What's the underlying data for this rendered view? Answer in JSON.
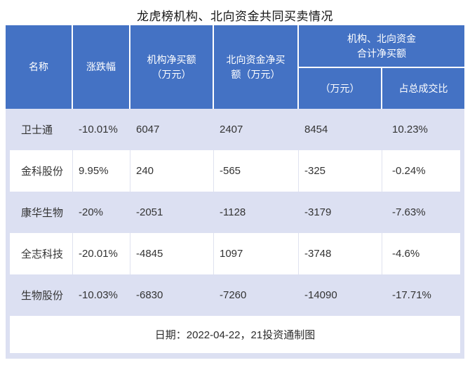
{
  "title": "龙虎榜机构、北向资金共同买卖情况",
  "colors": {
    "header_bg": "#4472C4",
    "header_text": "#FFFFFF",
    "row_alt_bg": "#DCE0F2",
    "row_bg": "#FFFFFF",
    "body_text": "#333333",
    "divider": "#DFE2EF"
  },
  "table": {
    "headers": {
      "name": "名称",
      "change": "涨跌幅",
      "inst_net": "机构净买额\n（万元）",
      "north_net": "北向资金净买\n额（万元）",
      "combined_group": "机构、北向资金\n合计净买额",
      "combined_amount": "（万元）",
      "combined_pct": "占总成交比"
    },
    "rows": [
      {
        "name": "卫士通",
        "change": "-10.01%",
        "inst_net": "6047",
        "north_net": "2407",
        "combined_amount": "8454",
        "combined_pct": "10.23%"
      },
      {
        "name": "金科股份",
        "change": "9.95%",
        "inst_net": "240",
        "north_net": "-565",
        "combined_amount": "-325",
        "combined_pct": "-0.24%"
      },
      {
        "name": "康华生物",
        "change": "-20%",
        "inst_net": "-2051",
        "north_net": "-1128",
        "combined_amount": "-3179",
        "combined_pct": "-7.63%"
      },
      {
        "name": "全志科技",
        "change": "-20.01%",
        "inst_net": "-4845",
        "north_net": "1097",
        "combined_amount": "-3748",
        "combined_pct": "-4.6%"
      },
      {
        "name": "生物股份",
        "change": "-10.03%",
        "inst_net": "-6830",
        "north_net": "-7260",
        "combined_amount": "-14090",
        "combined_pct": "-17.71%"
      }
    ],
    "footer": "日期：2022-04-22，21投资通制图"
  },
  "chart_data": {
    "type": "table",
    "title": "龙虎榜机构、北向资金共同买卖情况",
    "columns": [
      "名称",
      "涨跌幅",
      "机构净买额（万元）",
      "北向资金净买额（万元）",
      "机构、北向资金合计净买额（万元）",
      "机构、北向资金合计净买额占总成交比"
    ],
    "rows": [
      [
        "卫士通",
        "-10.01%",
        6047,
        2407,
        8454,
        "10.23%"
      ],
      [
        "金科股份",
        "9.95%",
        240,
        -565,
        -325,
        "-0.24%"
      ],
      [
        "康华生物",
        "-20%",
        -2051,
        -1128,
        -3179,
        "-7.63%"
      ],
      [
        "全志科技",
        "-20.01%",
        -4845,
        1097,
        -3748,
        "-4.6%"
      ],
      [
        "生物股份",
        "-10.03%",
        -6830,
        -7260,
        -14090,
        "-17.71%"
      ]
    ],
    "note": "日期：2022-04-22，21投资通制图",
    "layout": {
      "header_rows": 2,
      "grouped_columns": [
        "机构、北向资金合计净买额"
      ],
      "zebra_striping": true
    }
  }
}
